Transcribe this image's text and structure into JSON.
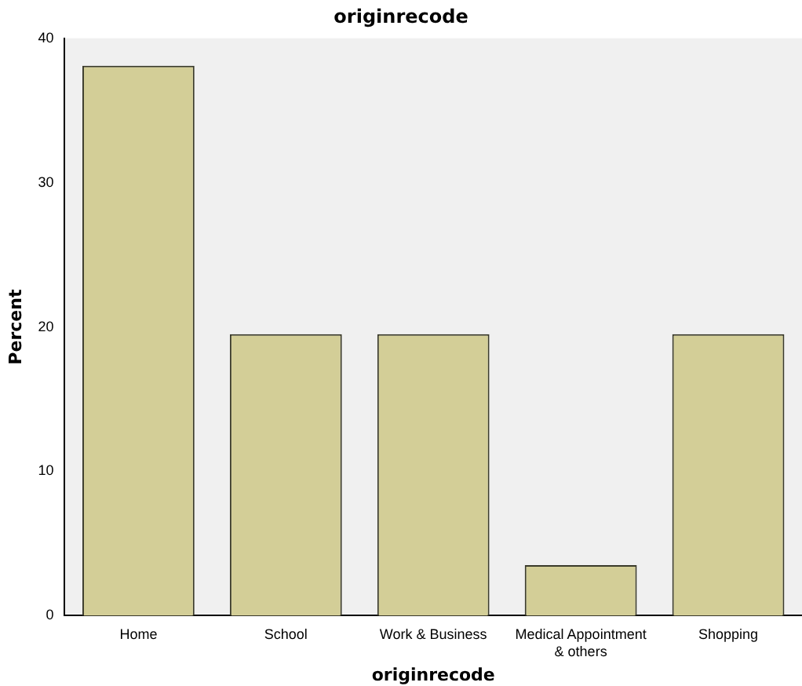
{
  "chart_data": {
    "type": "bar",
    "title": "originrecode",
    "xlabel": "originrecode",
    "ylabel": "Percent",
    "categories": [
      "Home",
      "School",
      "Work & Business",
      "Medical Appointment & others",
      "Shopping"
    ],
    "values": [
      38.1,
      19.5,
      19.5,
      3.5,
      19.5
    ],
    "color": "#d3ce97",
    "ylim": [
      0,
      40
    ],
    "yticks": [
      0,
      10,
      20,
      30,
      40
    ],
    "grid": false,
    "legend": false
  }
}
